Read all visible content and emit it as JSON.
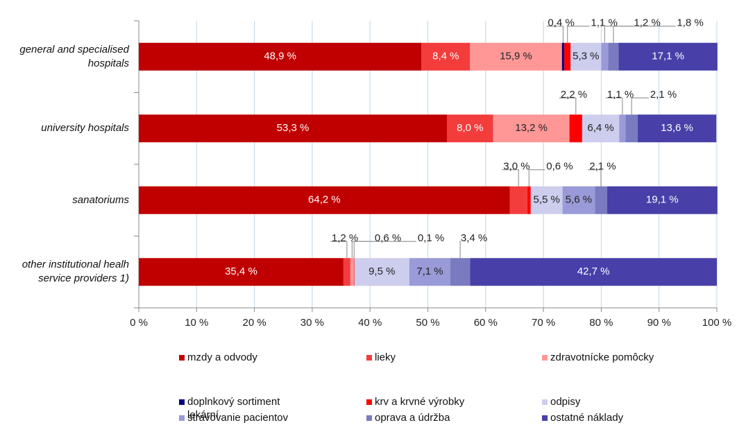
{
  "chart_data": {
    "type": "bar",
    "orientation": "horizontal",
    "stacked": true,
    "categories": [
      "general and specialised hospitals",
      "university hospitals",
      "sanatoriums",
      "other institutional healh service providers 1)"
    ],
    "series": [
      {
        "name": "mzdy a odvody",
        "color": "#c00000",
        "values": [
          48.9,
          53.3,
          64.2,
          35.4
        ],
        "value_labels": [
          "48,9 %",
          "53,3 %",
          "64,2 %",
          "35,4 %"
        ]
      },
      {
        "name": "lieky",
        "color": "#f33c3c",
        "values": [
          8.4,
          8.0,
          3.0,
          1.2
        ],
        "value_labels": [
          "8,4 %",
          "8,0 %",
          "3,0 %",
          "1,2 %"
        ]
      },
      {
        "name": "zdravotnícke pomôcky",
        "color": "#ff9797",
        "values": [
          15.9,
          13.2,
          null,
          0.6
        ],
        "value_labels": [
          "15,9 %",
          "13,2 %",
          null,
          "0,6 %"
        ]
      },
      {
        "name": "doplnkový sortiment lekární",
        "color": "#000080",
        "values": [
          0.4,
          null,
          null,
          null
        ],
        "value_labels": [
          "0,4 %",
          null,
          null,
          null
        ]
      },
      {
        "name": "krv a krvné výrobky",
        "color": "#ff0000",
        "values": [
          1.1,
          2.2,
          0.6,
          0.1
        ],
        "value_labels": [
          "1,1 %",
          "2,2 %",
          "0,6 %",
          "0,1 %"
        ]
      },
      {
        "name": "odpisy",
        "color": "#cdcdee",
        "values": [
          5.3,
          6.4,
          5.5,
          9.5
        ],
        "value_labels": [
          "5,3 %",
          "6,4 %",
          "5,5 %",
          "9,5 %"
        ]
      },
      {
        "name": "stravovanie pacientov",
        "color": "#9a9ad8",
        "values": [
          1.2,
          1.1,
          5.6,
          7.1
        ],
        "value_labels": [
          "1,2 %",
          "1,1 %",
          "5,6 %",
          "7,1 %"
        ]
      },
      {
        "name": "oprava a údržba",
        "color": "#7a7ac0",
        "values": [
          1.8,
          2.1,
          2.1,
          3.4
        ],
        "value_labels": [
          "1,8 %",
          "2,1 %",
          "2,1 %",
          "3,4 %"
        ]
      },
      {
        "name": "ostatné náklady",
        "color": "#4840a8",
        "values": [
          17.1,
          13.6,
          19.1,
          42.7
        ],
        "value_labels": [
          "17,1 %",
          "13,6 %",
          "19,1 %",
          "42,7 %"
        ]
      }
    ],
    "xlim": [
      0,
      100
    ],
    "xticks": [
      {
        "value": 0,
        "label": "0 %"
      },
      {
        "value": 10,
        "label": "10 %"
      },
      {
        "value": 20,
        "label": "20 %"
      },
      {
        "value": 30,
        "label": "30 %"
      },
      {
        "value": 40,
        "label": "40 %"
      },
      {
        "value": 50,
        "label": "50 %"
      },
      {
        "value": 60,
        "label": "60 %"
      },
      {
        "value": 70,
        "label": "70 %"
      },
      {
        "value": 80,
        "label": "80 %"
      },
      {
        "value": 90,
        "label": "90 %"
      },
      {
        "value": 100,
        "label": "100 %"
      }
    ],
    "grid": true
  }
}
